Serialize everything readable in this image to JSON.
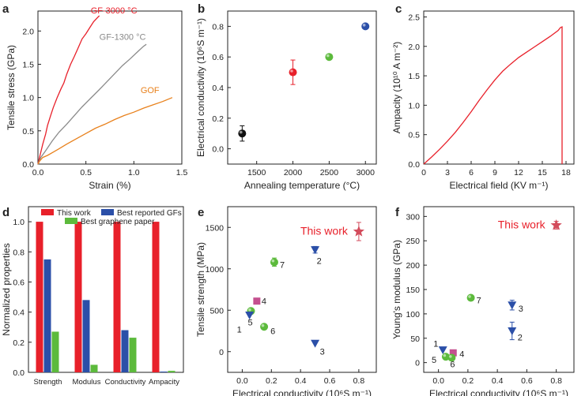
{
  "colors": {
    "red": "#e8202a",
    "gray": "#8a8a8a",
    "orange": "#e8811c",
    "black": "#111111",
    "green": "#5cba3c",
    "blue": "#2b4fa8",
    "magenta": "#c4508f",
    "pink": "#d34c5c"
  },
  "chart_data": [
    {
      "panel": "a",
      "type": "line",
      "xlabel": "Strain (%)",
      "ylabel": "Tensile stress (GPa)",
      "xlim": [
        0,
        1.5
      ],
      "ylim": [
        0,
        2.3
      ],
      "xticks": [
        "0.0",
        "0.5",
        "1.0",
        "1.5"
      ],
      "yticks": [
        "0.0",
        "0.5",
        "1.0",
        "1.5",
        "2.0"
      ],
      "series": [
        {
          "name": "GF-3000 °C",
          "color": "#e8202a",
          "x": [
            0,
            0.02,
            0.05,
            0.08,
            0.1,
            0.13,
            0.16,
            0.2,
            0.24,
            0.27,
            0.3,
            0.34,
            0.38,
            0.42,
            0.46,
            0.5,
            0.54,
            0.58,
            0.62,
            0.64
          ],
          "y": [
            0,
            0.12,
            0.3,
            0.45,
            0.58,
            0.72,
            0.85,
            1.0,
            1.13,
            1.22,
            1.35,
            1.5,
            1.62,
            1.75,
            1.88,
            1.96,
            2.05,
            2.14,
            2.2,
            2.23
          ]
        },
        {
          "name": "GF-1300 °C",
          "color": "#8a8a8a",
          "x": [
            0,
            0.03,
            0.08,
            0.15,
            0.22,
            0.3,
            0.38,
            0.46,
            0.55,
            0.64,
            0.72,
            0.8,
            0.88,
            0.96,
            1.04,
            1.1,
            1.13
          ],
          "y": [
            0,
            0.1,
            0.2,
            0.35,
            0.48,
            0.6,
            0.73,
            0.86,
            0.99,
            1.12,
            1.24,
            1.36,
            1.48,
            1.58,
            1.69,
            1.77,
            1.8
          ]
        },
        {
          "name": "GOF",
          "color": "#e8811c",
          "x": [
            0,
            0.02,
            0.05,
            0.1,
            0.16,
            0.22,
            0.3,
            0.4,
            0.5,
            0.6,
            0.7,
            0.8,
            0.9,
            1.0,
            1.1,
            1.2,
            1.3,
            1.35,
            1.4
          ],
          "y": [
            0,
            0.05,
            0.1,
            0.13,
            0.18,
            0.23,
            0.3,
            0.38,
            0.46,
            0.54,
            0.6,
            0.67,
            0.73,
            0.78,
            0.84,
            0.89,
            0.94,
            0.97,
            1.0
          ]
        }
      ]
    },
    {
      "panel": "b",
      "type": "scatter",
      "xlabel": "Annealing temperature (°C)",
      "ylabel": "Electrical conductivity (10⁶S m⁻¹)",
      "xlim": [
        1100,
        3150
      ],
      "ylim": [
        -0.1,
        0.9
      ],
      "xticks": [
        "1500",
        "2000",
        "2500",
        "3000"
      ],
      "yticks": [
        "0.0",
        "0.2",
        "0.4",
        "0.6",
        "0.8"
      ],
      "points": [
        {
          "x": 1300,
          "y": 0.1,
          "err": 0.05,
          "color": "#111111"
        },
        {
          "x": 2000,
          "y": 0.5,
          "err": 0.08,
          "color": "#e8202a"
        },
        {
          "x": 2500,
          "y": 0.6,
          "err": 0.015,
          "color": "#5cba3c"
        },
        {
          "x": 3000,
          "y": 0.8,
          "err": 0.015,
          "color": "#2b4fa8"
        }
      ]
    },
    {
      "panel": "c",
      "type": "line",
      "xlabel": "Electrical field (KV m⁻¹)",
      "ylabel": "Ampacity (10¹⁰ A m⁻²)",
      "xlim": [
        0,
        19
      ],
      "ylim": [
        0,
        2.6
      ],
      "xticks": [
        "0",
        "3",
        "6",
        "9",
        "12",
        "15",
        "18"
      ],
      "yticks": [
        "0.0",
        "0.5",
        "1.0",
        "1.5",
        "2.0",
        "2.5"
      ],
      "series": [
        {
          "name": "",
          "color": "#e8202a",
          "x": [
            0,
            1,
            2,
            3,
            4,
            5,
            6,
            7,
            8,
            9,
            10,
            11,
            12,
            13,
            14,
            15,
            16,
            17,
            17.3,
            17.5,
            17.5
          ],
          "y": [
            0,
            0.12,
            0.25,
            0.39,
            0.54,
            0.71,
            0.89,
            1.08,
            1.26,
            1.43,
            1.58,
            1.7,
            1.81,
            1.9,
            1.99,
            2.08,
            2.17,
            2.27,
            2.32,
            2.33,
            0
          ]
        }
      ]
    },
    {
      "panel": "d",
      "type": "bar",
      "ylabel": "Normalized properties",
      "ylim": [
        0,
        1.1
      ],
      "yticks": [
        "0.0",
        "0.2",
        "0.4",
        "0.6",
        "0.8",
        "1.0"
      ],
      "categories": [
        "Strength",
        "Modulus",
        "Conductivity",
        "Ampacity"
      ],
      "legend": "top",
      "series": [
        {
          "name": "This work",
          "color": "#e8202a",
          "values": [
            1.0,
            1.0,
            1.0,
            1.0
          ]
        },
        {
          "name": "Best reported GFs",
          "color": "#2b4fa8",
          "values": [
            0.75,
            0.48,
            0.28,
            0.005
          ]
        },
        {
          "name": "Best graphene paper",
          "color": "#5cba3c",
          "values": [
            0.27,
            0.05,
            0.23,
            0.01
          ]
        }
      ]
    },
    {
      "panel": "e",
      "type": "scatter",
      "xlabel": "Electrical conductivity (10⁶S m⁻¹)",
      "ylabel": "Tensile strength (MPa)",
      "xlim": [
        -0.1,
        0.92
      ],
      "ylim": [
        -250,
        1750
      ],
      "xticks": [
        "0.0",
        "0.2",
        "0.4",
        "0.6",
        "0.8"
      ],
      "yticks": [
        "0",
        "500",
        "1000",
        "1500"
      ],
      "annotation": "This work",
      "points": [
        {
          "x": 0.8,
          "y": 1450,
          "err": 110,
          "shape": "star",
          "color": "#d34c5c",
          "label": ""
        },
        {
          "x": 0.5,
          "y": 1230,
          "err": 40,
          "shape": "triangle",
          "color": "#2b4fa8",
          "label": "2"
        },
        {
          "x": 0.22,
          "y": 1080,
          "err": 50,
          "shape": "circle",
          "color": "#5cba3c",
          "label": "7"
        },
        {
          "x": 0.1,
          "y": 610,
          "err": 0,
          "shape": "square",
          "color": "#c4508f",
          "label": "4"
        },
        {
          "x": 0.06,
          "y": 490,
          "err": 0,
          "shape": "circle",
          "color": "#5cba3c",
          "label": "5"
        },
        {
          "x": 0.05,
          "y": 440,
          "err": 0,
          "shape": "triangle",
          "color": "#2b4fa8",
          "label": "1"
        },
        {
          "x": 0.15,
          "y": 300,
          "err": 0,
          "shape": "circle",
          "color": "#5cba3c",
          "label": "6"
        },
        {
          "x": 0.5,
          "y": 100,
          "err": 0,
          "shape": "triangle",
          "color": "#2b4fa8",
          "label": "3"
        }
      ]
    },
    {
      "panel": "f",
      "type": "scatter",
      "xlabel": "Electrical conductivity (10⁶S m⁻¹)",
      "ylabel": "Young's modulus (GPa)",
      "xlim": [
        -0.1,
        0.92
      ],
      "ylim": [
        -20,
        320
      ],
      "xticks": [
        "0.0",
        "0.2",
        "0.4",
        "0.6",
        "0.8"
      ],
      "yticks": [
        "0",
        "50",
        "100",
        "150",
        "200",
        "250",
        "300"
      ],
      "annotation": "This work",
      "points": [
        {
          "x": 0.8,
          "y": 282,
          "err": 8,
          "shape": "star",
          "color": "#d34c5c",
          "label": ""
        },
        {
          "x": 0.22,
          "y": 133,
          "err": 5,
          "shape": "circle",
          "color": "#5cba3c",
          "label": "7"
        },
        {
          "x": 0.5,
          "y": 118,
          "err": 10,
          "shape": "triangle",
          "color": "#2b4fa8",
          "label": "3"
        },
        {
          "x": 0.5,
          "y": 65,
          "err": 18,
          "shape": "triangle",
          "color": "#2b4fa8",
          "label": "2"
        },
        {
          "x": 0.03,
          "y": 26,
          "err": 0,
          "shape": "triangle",
          "color": "#2b4fa8",
          "label": "1"
        },
        {
          "x": 0.1,
          "y": 20,
          "err": 0,
          "shape": "square",
          "color": "#c4508f",
          "label": "4"
        },
        {
          "x": 0.05,
          "y": 12,
          "err": 0,
          "shape": "circle",
          "color": "#5cba3c",
          "label": "5"
        },
        {
          "x": 0.09,
          "y": 10,
          "err": 0,
          "shape": "circle",
          "color": "#5cba3c",
          "label": "6"
        }
      ]
    }
  ]
}
